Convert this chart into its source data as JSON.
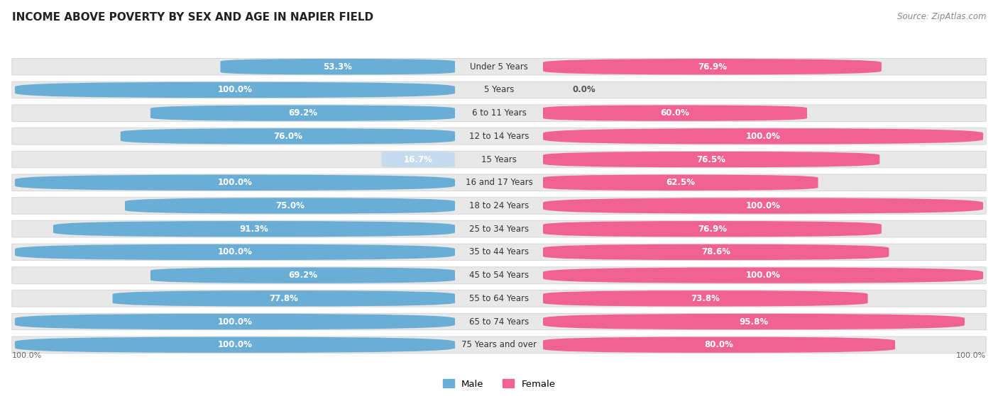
{
  "title": "INCOME ABOVE POVERTY BY SEX AND AGE IN NAPIER FIELD",
  "source": "Source: ZipAtlas.com",
  "categories": [
    "Under 5 Years",
    "5 Years",
    "6 to 11 Years",
    "12 to 14 Years",
    "15 Years",
    "16 and 17 Years",
    "18 to 24 Years",
    "25 to 34 Years",
    "35 to 44 Years",
    "45 to 54 Years",
    "55 to 64 Years",
    "65 to 74 Years",
    "75 Years and over"
  ],
  "male_values": [
    53.3,
    100.0,
    69.2,
    76.0,
    16.7,
    100.0,
    75.0,
    91.3,
    100.0,
    69.2,
    77.8,
    100.0,
    100.0
  ],
  "female_values": [
    76.9,
    0.0,
    60.0,
    100.0,
    76.5,
    62.5,
    100.0,
    76.9,
    78.6,
    100.0,
    73.8,
    95.8,
    80.0
  ],
  "male_color": "#6aaed6",
  "female_color": "#f06292",
  "male_color_light": "#c6dcee",
  "female_color_light": "#f8bbd9",
  "row_bg_color": "#e8e8e8",
  "row_bg_alt": "#f2f2f2",
  "title_fontsize": 11,
  "label_fontsize": 8.5,
  "value_fontsize": 8.5,
  "source_fontsize": 8.5
}
